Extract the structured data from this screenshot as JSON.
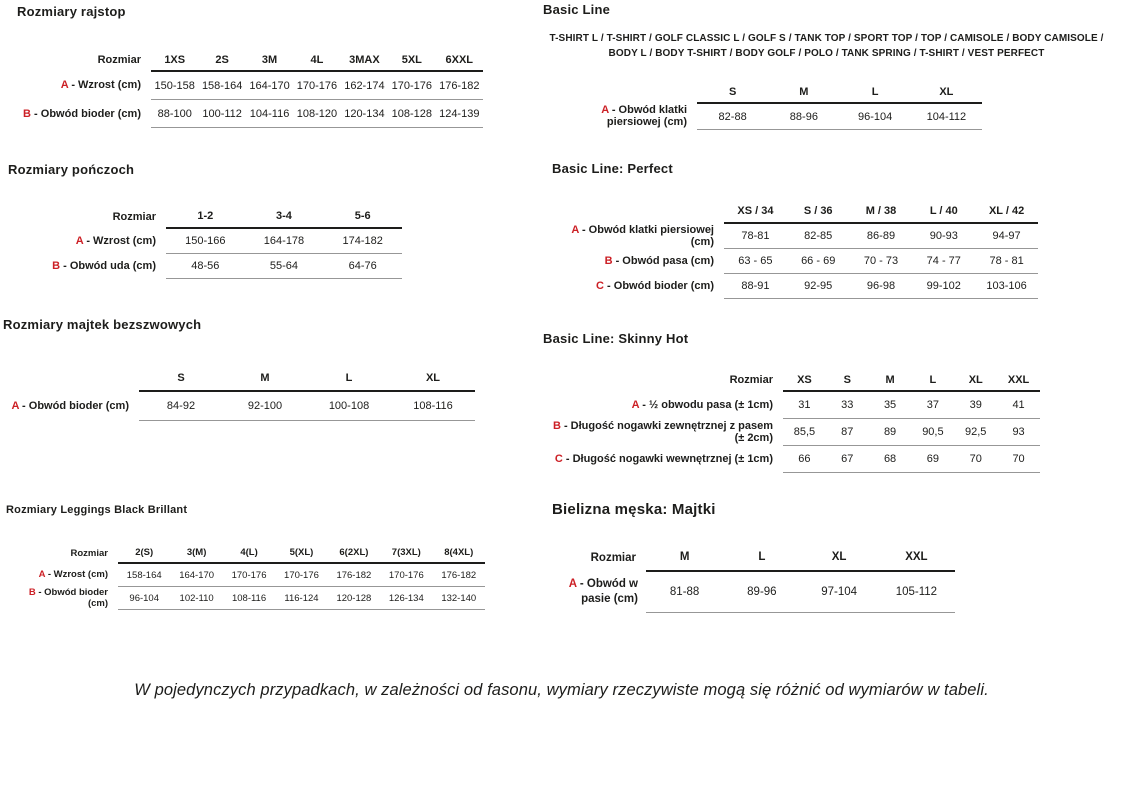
{
  "accent_color": "#cc2026",
  "footer": {
    "note": "W pojedynczych przypadkach, w zależności od fasonu, wymiary rzeczywiste mogą się różnić od wymiarów w tabeli."
  },
  "tables": [
    {
      "id": "rozmiary-rajstop",
      "title": "Rozmiary rajstop",
      "corner_label": "Rozmiar",
      "columns": [
        "1XS",
        "2S",
        "3M",
        "4L",
        "3MAX",
        "5XL",
        "6XXL"
      ],
      "rows": [
        {
          "letter": "A",
          "label": "Wzrost (cm)",
          "values": [
            "150-158",
            "158-164",
            "164-170",
            "170-176",
            "162-174",
            "170-176",
            "176-182"
          ]
        },
        {
          "letter": "B",
          "label": "Obwód bioder (cm)",
          "values": [
            "88-100",
            "100-112",
            "104-116",
            "108-120",
            "120-134",
            "108-128",
            "124-139"
          ]
        }
      ]
    },
    {
      "id": "rozmiary-ponczoch",
      "title": "Rozmiary pończoch",
      "corner_label": "Rozmiar",
      "columns": [
        "1-2",
        "3-4",
        "5-6"
      ],
      "rows": [
        {
          "letter": "A",
          "label": "Wzrost (cm)",
          "values": [
            "150-166",
            "164-178",
            "174-182"
          ]
        },
        {
          "letter": "B",
          "label": "Obwód uda (cm)",
          "values": [
            "48-56",
            "55-64",
            "64-76"
          ]
        }
      ]
    },
    {
      "id": "rozmiary-majtek-bezszwowych",
      "title": "Rozmiary majtek bezszwowych",
      "corner_label": "",
      "columns": [
        "S",
        "M",
        "L",
        "XL"
      ],
      "rows": [
        {
          "letter": "A",
          "label": "Obwód bioder (cm)",
          "values": [
            "84-92",
            "92-100",
            "100-108",
            "108-116"
          ]
        }
      ]
    },
    {
      "id": "rozmiary-leggings-black-brillant",
      "title": "Rozmiary Leggings Black Brillant",
      "corner_label": "Rozmiar",
      "columns": [
        "2(S)",
        "3(M)",
        "4(L)",
        "5(XL)",
        "6(2XL)",
        "7(3XL)",
        "8(4XL)"
      ],
      "rows": [
        {
          "letter": "A",
          "label": "Wzrost (cm)",
          "values": [
            "158-164",
            "164-170",
            "170-176",
            "170-176",
            "176-182",
            "170-176",
            "176-182"
          ]
        },
        {
          "letter": "B",
          "label": "Obwód bioder (cm)",
          "values": [
            "96-104",
            "102-110",
            "108-116",
            "116-124",
            "120-128",
            "126-134",
            "132-140"
          ]
        }
      ]
    },
    {
      "id": "basic-line",
      "title": "Basic Line",
      "subtitle": "T-SHIRT L / T-SHIRT / GOLF CLASSIC L / GOLF S / TANK TOP / SPORT TOP / TOP / CAMISOLE / BODY CAMISOLE / BODY L / BODY T-SHIRT / BODY GOLF / POLO / TANK SPRING / T-SHIRT / VEST PERFECT",
      "corner_label": "",
      "columns": [
        "S",
        "M",
        "L",
        "XL"
      ],
      "rows": [
        {
          "letter": "A",
          "label": "Obwód klatki piersiowej (cm)",
          "values": [
            "82-88",
            "88-96",
            "96-104",
            "104-112"
          ]
        }
      ]
    },
    {
      "id": "basic-line-perfect",
      "title": "Basic Line: Perfect",
      "corner_label": "",
      "columns": [
        "XS / 34",
        "S / 36",
        "M / 38",
        "L / 40",
        "XL / 42"
      ],
      "rows": [
        {
          "letter": "A",
          "label": "Obwód klatki piersiowej (cm)",
          "values": [
            "78-81",
            "82-85",
            "86-89",
            "90-93",
            "94-97"
          ]
        },
        {
          "letter": "B",
          "label": "Obwód pasa (cm)",
          "values": [
            "63 - 65",
            "66 - 69",
            "70 - 73",
            "74 - 77",
            "78 - 81"
          ]
        },
        {
          "letter": "C",
          "label": "Obwód bioder (cm)",
          "values": [
            "88-91",
            "92-95",
            "96-98",
            "99-102",
            "103-106"
          ]
        }
      ]
    },
    {
      "id": "basic-line-skinny-hot",
      "title": "Basic Line: Skinny Hot",
      "corner_label": "Rozmiar",
      "columns": [
        "XS",
        "S",
        "M",
        "L",
        "XL",
        "XXL"
      ],
      "rows": [
        {
          "letter": "A",
          "label": "½ obwodu pasa (± 1cm)",
          "values": [
            "31",
            "33",
            "35",
            "37",
            "39",
            "41"
          ]
        },
        {
          "letter": "B",
          "label": "Długość nogawki zewnętrznej z pasem (± 2cm)",
          "values": [
            "85,5",
            "87",
            "89",
            "90,5",
            "92,5",
            "93"
          ]
        },
        {
          "letter": "C",
          "label": "Długość nogawki wewnętrznej (± 1cm)",
          "values": [
            "66",
            "67",
            "68",
            "69",
            "70",
            "70"
          ]
        }
      ]
    },
    {
      "id": "bielizna-meska-majtki",
      "title": "Bielizna męska: Majtki",
      "corner_label": "Rozmiar",
      "columns": [
        "M",
        "L",
        "XL",
        "XXL"
      ],
      "rows": [
        {
          "letter": "A",
          "label": "Obwód w pasie (cm)",
          "values": [
            "81-88",
            "89-96",
            "97-104",
            "105-112"
          ]
        }
      ]
    }
  ]
}
